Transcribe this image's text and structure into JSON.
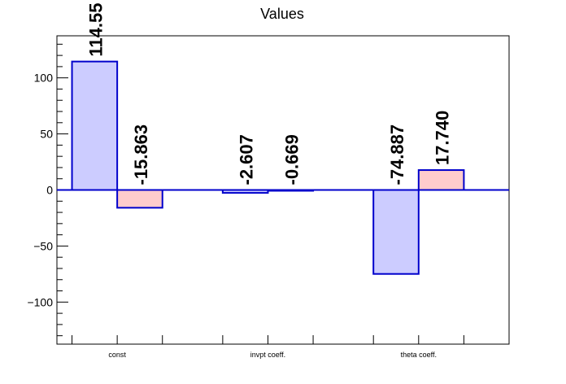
{
  "chart_data": {
    "type": "bar",
    "title": "Values",
    "xlabel": "",
    "ylabel": "",
    "categories": [
      "const",
      "invpt coeff.",
      "theta coeff."
    ],
    "ylim": [
      -137.5,
      137.5
    ],
    "y_ticks": [
      -100,
      -50,
      0,
      50,
      100
    ],
    "y_tick_labels": [
      "−100",
      "−50",
      "0",
      "50",
      "100"
    ],
    "grid": false,
    "legend": "none",
    "series": [
      {
        "values": [
          114.55,
          -2.607,
          -74.887
        ],
        "labels": [
          "114.55",
          "-2.607",
          "-74.887"
        ],
        "fill": "#ccccff",
        "stroke": "#0000cc"
      },
      {
        "values": [
          -15.863,
          -0.669,
          17.74
        ],
        "labels": [
          "-15.863",
          "-0.669",
          "17.740"
        ],
        "fill": "#ffcccc",
        "stroke": "#0000cc"
      }
    ],
    "zero_line_color": "#0000cc"
  }
}
